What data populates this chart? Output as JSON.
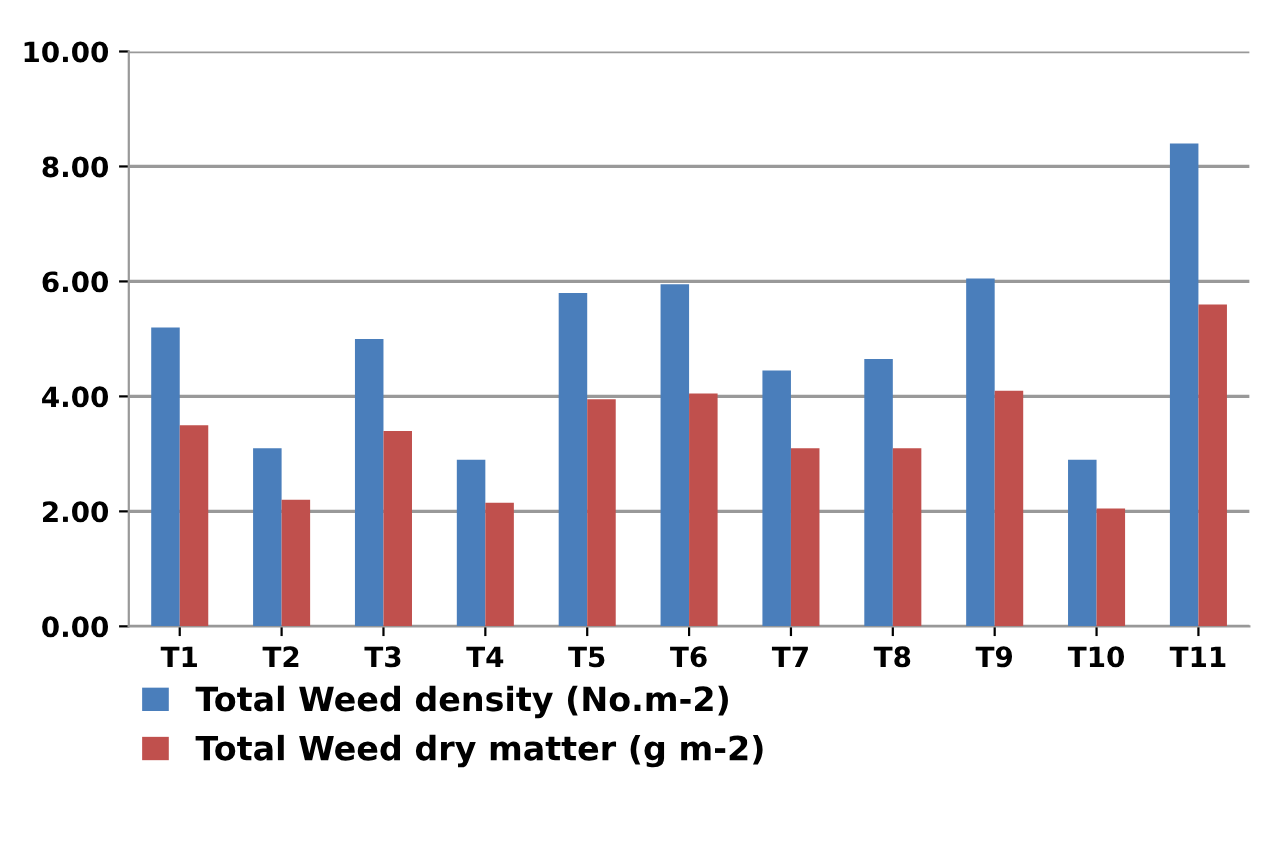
{
  "chart_data": {
    "type": "bar",
    "categories": [
      "T1",
      "T2",
      "T3",
      "T4",
      "T5",
      "T6",
      "T7",
      "T8",
      "T9",
      "T10",
      "T11"
    ],
    "series": [
      {
        "name": "Total Weed density (No.m-2)",
        "color": "#4a7ebb",
        "values": [
          5.2,
          3.1,
          5.0,
          2.9,
          5.8,
          5.95,
          4.45,
          4.65,
          6.05,
          2.9,
          8.4
        ]
      },
      {
        "name": "Total Weed dry matter (g m-2)",
        "color": "#c0504d",
        "values": [
          3.5,
          2.2,
          3.4,
          2.15,
          3.95,
          4.05,
          3.1,
          3.1,
          4.1,
          2.05,
          5.6
        ]
      }
    ],
    "ylim": [
      0,
      10
    ],
    "yticks": [
      {
        "value": 0,
        "label": "0.00"
      },
      {
        "value": 2,
        "label": "2.00"
      },
      {
        "value": 4,
        "label": "4.00"
      },
      {
        "value": 6,
        "label": "6.00"
      },
      {
        "value": 8,
        "label": "8.00"
      },
      {
        "value": 10,
        "label": "10.00"
      }
    ],
    "grid": "y",
    "legend": "bottom"
  }
}
